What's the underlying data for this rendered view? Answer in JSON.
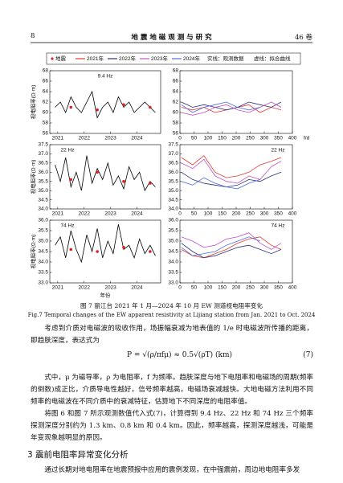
{
  "header": {
    "page": "8",
    "journal": "地 震 地 磁 观 测 与 研 究",
    "volume": "46 卷"
  },
  "figure": {
    "legend": {
      "quake": "地震",
      "quake_color": "#e02020",
      "years": [
        {
          "name": "2021年",
          "color": "#e23a2e"
        },
        {
          "name": "2022年",
          "color": "#2b2f7a"
        },
        {
          "name": "2023年",
          "color": "#c04fc8"
        },
        {
          "name": "2024年",
          "color": "#4a6fe0"
        }
      ],
      "solid": "实线：观测数据",
      "dashed": "虚线：拟合曲线"
    },
    "y_label": "视电阻率(Ω·m)",
    "x_label_left": "年份",
    "x_label_right": "f/d",
    "caption_cn": "图 7   丽江台 2021 年 1 月—2024 年 10 月 EW 测道视电阻率变化",
    "caption_en": "Fig.7   Temporal changes of the EW apparent resistivity at Lijiang station from Jan. 2021 to Oct. 2024"
  },
  "chart_data": [
    {
      "type": "line",
      "title": "9.4 Hz",
      "x": [
        2020.9,
        2021.1,
        2021.3,
        2021.5,
        2021.7,
        2021.9,
        2022.1,
        2022.3,
        2022.5,
        2022.7,
        2022.9,
        2023.1,
        2023.3,
        2023.5,
        2023.7,
        2023.9,
        2024.1,
        2024.3,
        2024.5,
        2024.7
      ],
      "series": [
        {
          "color": "#000000",
          "values": [
            61,
            62,
            60,
            63,
            61,
            60,
            62,
            64,
            59,
            61,
            62,
            60,
            63,
            61,
            62,
            60,
            61,
            62,
            61,
            60
          ]
        },
        {
          "color": "#e02020",
          "marker": "dot",
          "values": [
            null,
            null,
            null,
            61,
            null,
            null,
            null,
            null,
            60.5,
            null,
            null,
            null,
            null,
            61.5,
            null,
            null,
            null,
            null,
            61,
            null
          ]
        }
      ],
      "xlim": [
        2020.7,
        2024.9
      ],
      "xticks": [
        2021,
        2022,
        2023,
        2024
      ],
      "ylim": [
        56,
        68
      ],
      "yticks": [
        56,
        58,
        60,
        62,
        64,
        66,
        68
      ]
    },
    {
      "type": "line",
      "x": [
        5,
        45,
        85,
        125,
        165,
        205,
        245,
        285,
        325,
        360
      ],
      "series": [
        {
          "color": "#e23a2e",
          "values": [
            61,
            60.5,
            61,
            60,
            60.5,
            61,
            61.5,
            60,
            61,
            60.5
          ]
        },
        {
          "color": "#2b2f7a",
          "values": [
            62,
            61,
            61.5,
            61,
            60.5,
            61,
            62,
            61.5,
            61,
            62
          ]
        },
        {
          "color": "#c04fc8",
          "values": [
            60,
            59.5,
            60,
            61,
            61.5,
            60.5,
            60,
            61,
            62,
            61
          ]
        },
        {
          "color": "#4a6fe0",
          "values": [
            61.5,
            60,
            61,
            61.5,
            62,
            61,
            60.5,
            61,
            null,
            null
          ]
        }
      ],
      "xlim": [
        0,
        400
      ],
      "xticks": [
        0,
        50,
        100,
        150,
        200,
        250,
        300,
        350,
        400
      ],
      "ylim": [
        56,
        68
      ],
      "yticks": [
        56,
        58,
        60,
        62,
        64,
        66,
        68
      ]
    },
    {
      "type": "line",
      "title": "22 Hz",
      "x": [
        2020.9,
        2021.1,
        2021.3,
        2021.5,
        2021.7,
        2021.9,
        2022.1,
        2022.3,
        2022.5,
        2022.7,
        2022.9,
        2023.1,
        2023.3,
        2023.5,
        2023.7,
        2023.9,
        2024.1,
        2024.3,
        2024.5,
        2024.7
      ],
      "series": [
        {
          "color": "#000000",
          "values": [
            36.4,
            35.5,
            36.8,
            35.2,
            36,
            35,
            36.9,
            35.4,
            36.2,
            35.6,
            36.5,
            35.3,
            35.8,
            35.1,
            36.3,
            35.6,
            36,
            35,
            35.5,
            35.2
          ]
        },
        {
          "color": "#e02020",
          "marker": "dot",
          "values": [
            null,
            null,
            null,
            35.6,
            null,
            null,
            null,
            null,
            36,
            null,
            null,
            null,
            null,
            35.5,
            null,
            null,
            null,
            null,
            35.4,
            null
          ]
        }
      ],
      "xlim": [
        2020.7,
        2024.9
      ],
      "xticks": [
        2021,
        2022,
        2023,
        2024
      ],
      "ylim": [
        34,
        37.5
      ],
      "yticks": [
        {
          "value": 34,
          "label": "34.0"
        },
        34.5,
        {
          "value": 35,
          "label": "35.0"
        },
        35.5,
        {
          "value": 36,
          "label": "36.0"
        },
        36.5,
        {
          "value": 37,
          "label": "37.0"
        },
        37.5
      ]
    },
    {
      "type": "line",
      "title": "22 Hz",
      "x": [
        5,
        45,
        85,
        125,
        165,
        205,
        245,
        285,
        325,
        360
      ],
      "series": [
        {
          "color": "#e23a2e",
          "values": [
            36.8,
            36.4,
            36.9,
            36,
            35.7,
            35.8,
            36,
            36.4,
            36.6,
            36.8
          ]
        },
        {
          "color": "#2b2f7a",
          "values": [
            36,
            35.6,
            35.4,
            35.3,
            35.2,
            35.3,
            35.6,
            35.5,
            35.8,
            36
          ]
        },
        {
          "color": "#c04fc8",
          "values": [
            36.5,
            36.2,
            36.7,
            35.8,
            35.5,
            35.4,
            35.8,
            35.6,
            36.3,
            36.6
          ]
        },
        {
          "color": "#4a6fe0",
          "values": [
            35.5,
            35.3,
            35.7,
            35.4,
            35.2,
            35.1,
            35.4,
            35.6,
            null,
            null
          ]
        }
      ],
      "xlim": [
        0,
        400
      ],
      "xticks": [
        0,
        50,
        100,
        150,
        200,
        250,
        300,
        350,
        400
      ],
      "ylim": [
        34,
        37.5
      ],
      "yticks": [
        {
          "value": 34,
          "label": "34.0"
        },
        34.5,
        {
          "value": 35,
          "label": "35.0"
        },
        35.5,
        {
          "value": 36,
          "label": "36.0"
        },
        36.5,
        {
          "value": 37,
          "label": "37.0"
        },
        37.5
      ]
    },
    {
      "type": "line",
      "title": "74 Hz",
      "x": [
        2020.9,
        2021.1,
        2021.3,
        2021.5,
        2021.7,
        2021.9,
        2022.1,
        2022.3,
        2022.5,
        2022.7,
        2022.9,
        2023.1,
        2023.3,
        2023.5,
        2023.7,
        2023.9,
        2024.1,
        2024.3,
        2024.5,
        2024.7
      ],
      "series": [
        {
          "color": "#000000",
          "values": [
            34.8,
            35.2,
            34.2,
            35.5,
            34.6,
            34,
            35.3,
            34.5,
            35.6,
            34.2,
            35,
            34.4,
            35.8,
            34.6,
            34.8,
            34.2,
            35.1,
            34.4,
            34.8,
            34.3
          ]
        },
        {
          "color": "#e02020",
          "marker": "dot",
          "values": [
            null,
            null,
            null,
            34.6,
            null,
            null,
            null,
            null,
            34.5,
            null,
            null,
            null,
            null,
            34.7,
            null,
            null,
            null,
            null,
            34.5,
            null
          ]
        }
      ],
      "xlim": [
        2020.7,
        2024.9
      ],
      "xticks": [
        2021,
        2022,
        2023,
        2024
      ],
      "ylim": [
        33,
        36
      ],
      "yticks": [
        {
          "value": 33,
          "label": "33.0"
        },
        33.5,
        {
          "value": 34,
          "label": "34.0"
        },
        34.5,
        {
          "value": 35,
          "label": "35.0"
        },
        35.5,
        {
          "value": 36,
          "label": "36.0"
        }
      ]
    },
    {
      "type": "line",
      "title": "74 Hz",
      "x": [
        5,
        45,
        85,
        125,
        165,
        205,
        245,
        285,
        325,
        360
      ],
      "series": [
        {
          "color": "#e23a2e",
          "values": [
            34.6,
            34.3,
            34.2,
            34.4,
            34.6,
            34.9,
            35.1,
            35.2,
            34.8,
            34.6
          ]
        },
        {
          "color": "#2b2f7a",
          "values": [
            34.9,
            34.5,
            34.2,
            34.3,
            34.5,
            34.7,
            34.8,
            34.6,
            34.4,
            34.6
          ]
        },
        {
          "color": "#c04fc8",
          "values": [
            35.2,
            35,
            34.7,
            34.8,
            35.1,
            35.2,
            35.4,
            34.9,
            34.6,
            34.9
          ]
        },
        {
          "color": "#4a6fe0",
          "values": [
            34.7,
            34.3,
            34.4,
            34.5,
            34.8,
            35,
            35.2,
            35,
            null,
            null
          ]
        }
      ],
      "xlim": [
        0,
        400
      ],
      "xticks": [
        0,
        50,
        100,
        150,
        200,
        250,
        300,
        350,
        400
      ],
      "ylim": [
        33,
        36
      ],
      "yticks": [
        {
          "value": 33,
          "label": "33.0"
        },
        33.5,
        {
          "value": 34,
          "label": "34.0"
        },
        34.5,
        {
          "value": 35,
          "label": "35.0"
        },
        35.5,
        {
          "value": 36,
          "label": "36.0"
        }
      ]
    }
  ],
  "body": {
    "para1": "考虑到介质对电磁波的吸收作用，场振幅衰减为地表值的 1/e 时电磁波所传播的距离，即趋肤深度，表达式为",
    "formula": "P = √(ρ/πfμ) ≈ 0.5√(ρT) (km)",
    "eq_no": "(7)",
    "para2": "式中，μ 为磁导率，ρ 为电阻率，f 为频率。趋肤深度与地下电阻率和电磁场的周期(频率的倒数)成正比，介质导电性越好，信号频率越高，电磁场衰减越快。大地电磁方法利用不同频率的电磁波在不同介质中的衰减特征，估算地下不同深度的电阻率值。",
    "para3": "将图 6 和图 7 所示观测数值代入式(7)，计算得到 9.4 Hz、22 Hz 和 74 Hz 三个频率探测深度分别约为 1.3 km、0.8 km 和 0.4 km。因此，频率越高，探测深度越浅，可能是年变现象越明显的原因。",
    "section": "3   震前电阻率异常变化分析",
    "para4": "通过长期对地电阻率在地震预报中应用的震例发现，在中强震前，周边地电阻率多发"
  }
}
